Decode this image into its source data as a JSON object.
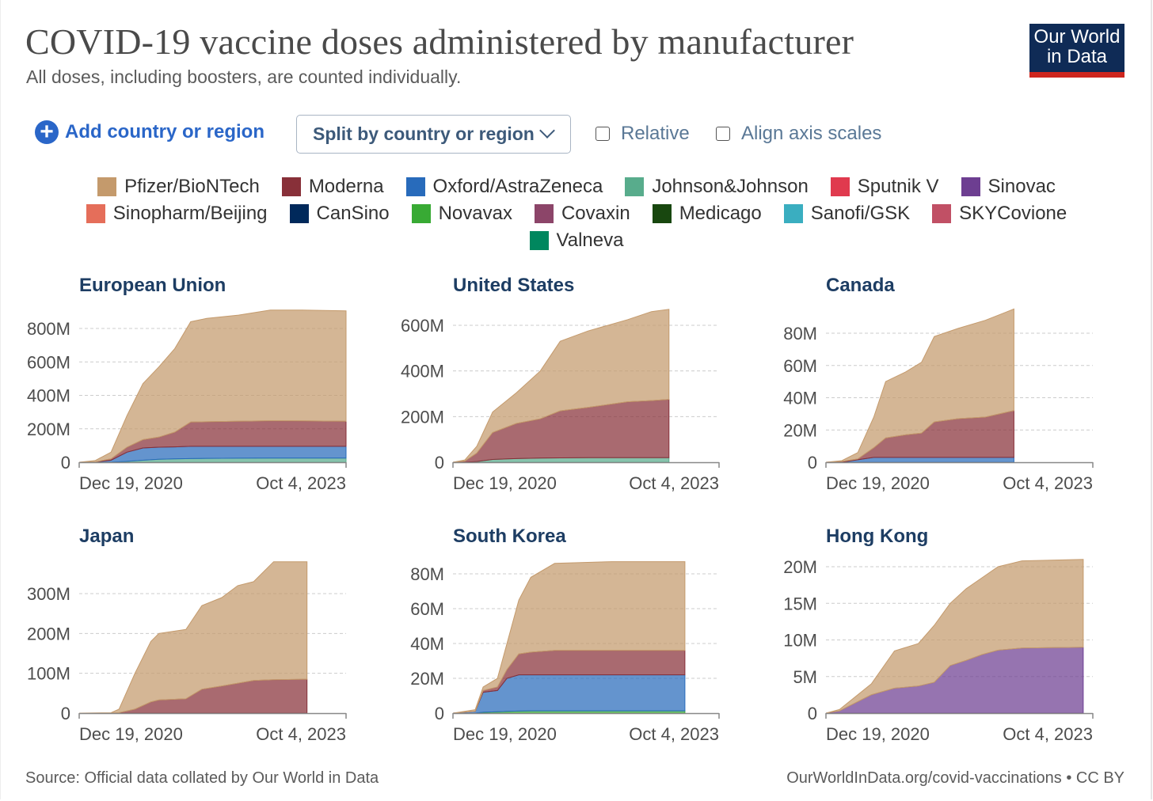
{
  "header": {
    "title": "COVID-19 vaccine doses administered by manufacturer",
    "subtitle": "All doses, including boosters, are counted individually.",
    "logo_text": [
      "Our World",
      "in Data"
    ]
  },
  "controls": {
    "add_label": "Add country or region",
    "split_label": "Split by country or region",
    "relative_label": "Relative",
    "relative_checked": false,
    "align_label": "Align axis scales",
    "align_checked": false
  },
  "legend": [
    [
      {
        "name": "Pfizer/BioNTech",
        "color": "#c49a6c"
      },
      {
        "name": "Moderna",
        "color": "#883039"
      },
      {
        "name": "Oxford/AstraZeneca",
        "color": "#286bbb"
      },
      {
        "name": "Johnson&Johnson",
        "color": "#58ac8c"
      },
      {
        "name": "Sputnik V",
        "color": "#e03a4e"
      },
      {
        "name": "Sinovac",
        "color": "#6d3e91"
      }
    ],
    [
      {
        "name": "Sinopharm/Beijing",
        "color": "#e56e5a"
      },
      {
        "name": "CanSino",
        "color": "#00295b"
      },
      {
        "name": "Novavax",
        "color": "#38aa34"
      },
      {
        "name": "Covaxin",
        "color": "#8c4569"
      },
      {
        "name": "Medicago",
        "color": "#18470f"
      },
      {
        "name": "Sanofi/GSK",
        "color": "#3aaec0"
      },
      {
        "name": "SKYCovione",
        "color": "#c15065"
      }
    ],
    [
      {
        "name": "Valneva",
        "color": "#00875e"
      }
    ]
  ],
  "chart_data": [
    {
      "type": "area",
      "title": "European Union",
      "x_unit": "months since Dec 19, 2020",
      "xlim": [
        0,
        33.5
      ],
      "x_tick_labels": [
        "Dec 19, 2020",
        "Oct 4, 2023"
      ],
      "y_ticks": [
        0,
        200,
        400,
        600,
        800
      ],
      "y_tick_labels": [
        "0",
        "200M",
        "400M",
        "600M",
        "800M"
      ],
      "y_unit": "millions of doses",
      "x": [
        0,
        2,
        4,
        6,
        8,
        10,
        12,
        14,
        16,
        20,
        24,
        28,
        33.5
      ],
      "series": [
        {
          "name": "Johnson&Johnson",
          "values": [
            0,
            0,
            0,
            5,
            12,
            18,
            20,
            22,
            23,
            24,
            25,
            25,
            25
          ]
        },
        {
          "name": "Oxford/AstraZeneca",
          "values": [
            0,
            1,
            12,
            55,
            73,
            72,
            72,
            73,
            72,
            71,
            70,
            70,
            70
          ]
        },
        {
          "name": "Moderna",
          "values": [
            0,
            1,
            8,
            30,
            50,
            60,
            88,
            145,
            147,
            150,
            153,
            152,
            150
          ]
        },
        {
          "name": "Pfizer/BioNTech",
          "values": [
            0,
            8,
            40,
            190,
            335,
            420,
            500,
            600,
            618,
            635,
            662,
            663,
            660
          ]
        }
      ]
    },
    {
      "type": "area",
      "title": "United States",
      "xlim": [
        0,
        33.5
      ],
      "x_tick_labels": [
        "Dec 19, 2020",
        "Oct 4, 2023"
      ],
      "y_ticks": [
        0,
        200,
        400,
        600
      ],
      "y_tick_labels": [
        "0",
        "200M",
        "400M",
        "600M"
      ],
      "x": [
        0,
        1.5,
        3,
        5,
        8,
        11,
        13.5,
        17,
        22,
        25,
        27.2
      ],
      "series": [
        {
          "name": "Johnson&Johnson",
          "values": [
            0,
            0,
            3,
            12,
            16,
            18,
            19,
            20,
            20,
            20,
            20
          ]
        },
        {
          "name": "Moderna",
          "values": [
            0,
            5,
            37,
            118,
            154,
            172,
            206,
            220,
            245,
            250,
            255
          ]
        },
        {
          "name": "Pfizer/BioNTech",
          "values": [
            0,
            5,
            30,
            90,
            135,
            210,
            305,
            335,
            360,
            390,
            395
          ]
        }
      ]
    },
    {
      "type": "area",
      "title": "Canada",
      "xlim": [
        0,
        33.5
      ],
      "x_tick_labels": [
        "Dec 19, 2020",
        "Oct 4, 2023"
      ],
      "y_ticks": [
        0,
        20,
        40,
        60,
        80
      ],
      "y_tick_labels": [
        "0",
        "20M",
        "40M",
        "60M",
        "80M"
      ],
      "x": [
        0,
        2,
        4,
        6,
        7.5,
        10,
        12,
        13.6,
        16.6,
        20,
        23.6
      ],
      "series": [
        {
          "name": "Oxford/AstraZeneca",
          "values": [
            0,
            0,
            1.5,
            3,
            3,
            3,
            3,
            3,
            3,
            3,
            3
          ]
        },
        {
          "name": "Moderna",
          "values": [
            0,
            0.5,
            0.5,
            6,
            12,
            14,
            15,
            22,
            24,
            25,
            29
          ]
        },
        {
          "name": "Pfizer/BioNTech",
          "values": [
            0,
            0.5,
            4,
            19,
            35,
            39,
            44,
            53,
            56,
            60,
            63
          ]
        }
      ]
    },
    {
      "type": "area",
      "title": "Japan",
      "xlim": [
        0,
        33.5
      ],
      "x_tick_labels": [
        "Dec 19, 2020",
        "Oct 4, 2023"
      ],
      "y_ticks": [
        0,
        100,
        200,
        300
      ],
      "y_tick_labels": [
        "0",
        "100M",
        "200M",
        "300M"
      ],
      "x": [
        0,
        4,
        5,
        7,
        9,
        10,
        13.4,
        15.4,
        17.9,
        19.9,
        21.9,
        24.4,
        28.6
      ],
      "series": [
        {
          "name": "Moderna",
          "values": [
            0,
            0,
            1,
            10,
            28,
            33,
            36,
            60,
            68,
            75,
            82,
            84,
            85
          ]
        },
        {
          "name": "Pfizer/BioNTech",
          "values": [
            0,
            1,
            9,
            90,
            152,
            167,
            174,
            210,
            222,
            245,
            248,
            296,
            295
          ]
        }
      ]
    },
    {
      "type": "area",
      "title": "South Korea",
      "xlim": [
        0,
        33.5
      ],
      "x_tick_labels": [
        "Dec 19, 2020",
        "Oct 4, 2023"
      ],
      "y_ticks": [
        0,
        20,
        40,
        60,
        80
      ],
      "y_tick_labels": [
        "0",
        "20M",
        "40M",
        "60M",
        "80M"
      ],
      "x": [
        0,
        2.8,
        3.8,
        5.6,
        6.8,
        8.3,
        9.8,
        12.8,
        20,
        29.2
      ],
      "series": [
        {
          "name": "Novavax",
          "values": [
            0,
            0,
            0.5,
            0.8,
            1,
            1.2,
            1.3,
            1.3,
            1.3,
            1.3
          ]
        },
        {
          "name": "Oxford/AstraZeneca",
          "values": [
            0,
            1,
            11.5,
            12.2,
            19,
            20.8,
            20.7,
            20.7,
            20.7,
            20.7
          ]
        },
        {
          "name": "Moderna",
          "values": [
            0,
            0,
            1,
            2,
            5,
            12,
            13,
            14,
            14,
            14
          ]
        },
        {
          "name": "Pfizer/BioNTech",
          "values": [
            0,
            1,
            2,
            5,
            15,
            31,
            43,
            50,
            51,
            51
          ]
        }
      ]
    },
    {
      "type": "area",
      "title": "Hong Kong",
      "xlim": [
        0,
        33.5
      ],
      "x_tick_labels": [
        "Dec 19, 2020",
        "Oct 4, 2023"
      ],
      "y_ticks": [
        0,
        5,
        10,
        15,
        20
      ],
      "y_tick_labels": [
        "0",
        "5M",
        "10M",
        "15M",
        "20M"
      ],
      "x": [
        0,
        1.7,
        5.7,
        8.6,
        11.6,
        13.6,
        15.6,
        17.6,
        19.6,
        21.6,
        24.6,
        32.3
      ],
      "series": [
        {
          "name": "Sinovac",
          "values": [
            0,
            0.3,
            2.5,
            3.4,
            3.7,
            4.2,
            6.5,
            7.2,
            8,
            8.6,
            8.9,
            9
          ]
        },
        {
          "name": "Pfizer/BioNTech",
          "values": [
            0,
            0.2,
            1.5,
            5.1,
            5.8,
            7.8,
            8.5,
            9.8,
            10.5,
            11.4,
            11.9,
            12
          ]
        }
      ]
    }
  ],
  "footer": {
    "source": "Source: Official data collated by Our World in Data",
    "link": "OurWorldInData.org/covid-vaccinations • CC BY"
  }
}
